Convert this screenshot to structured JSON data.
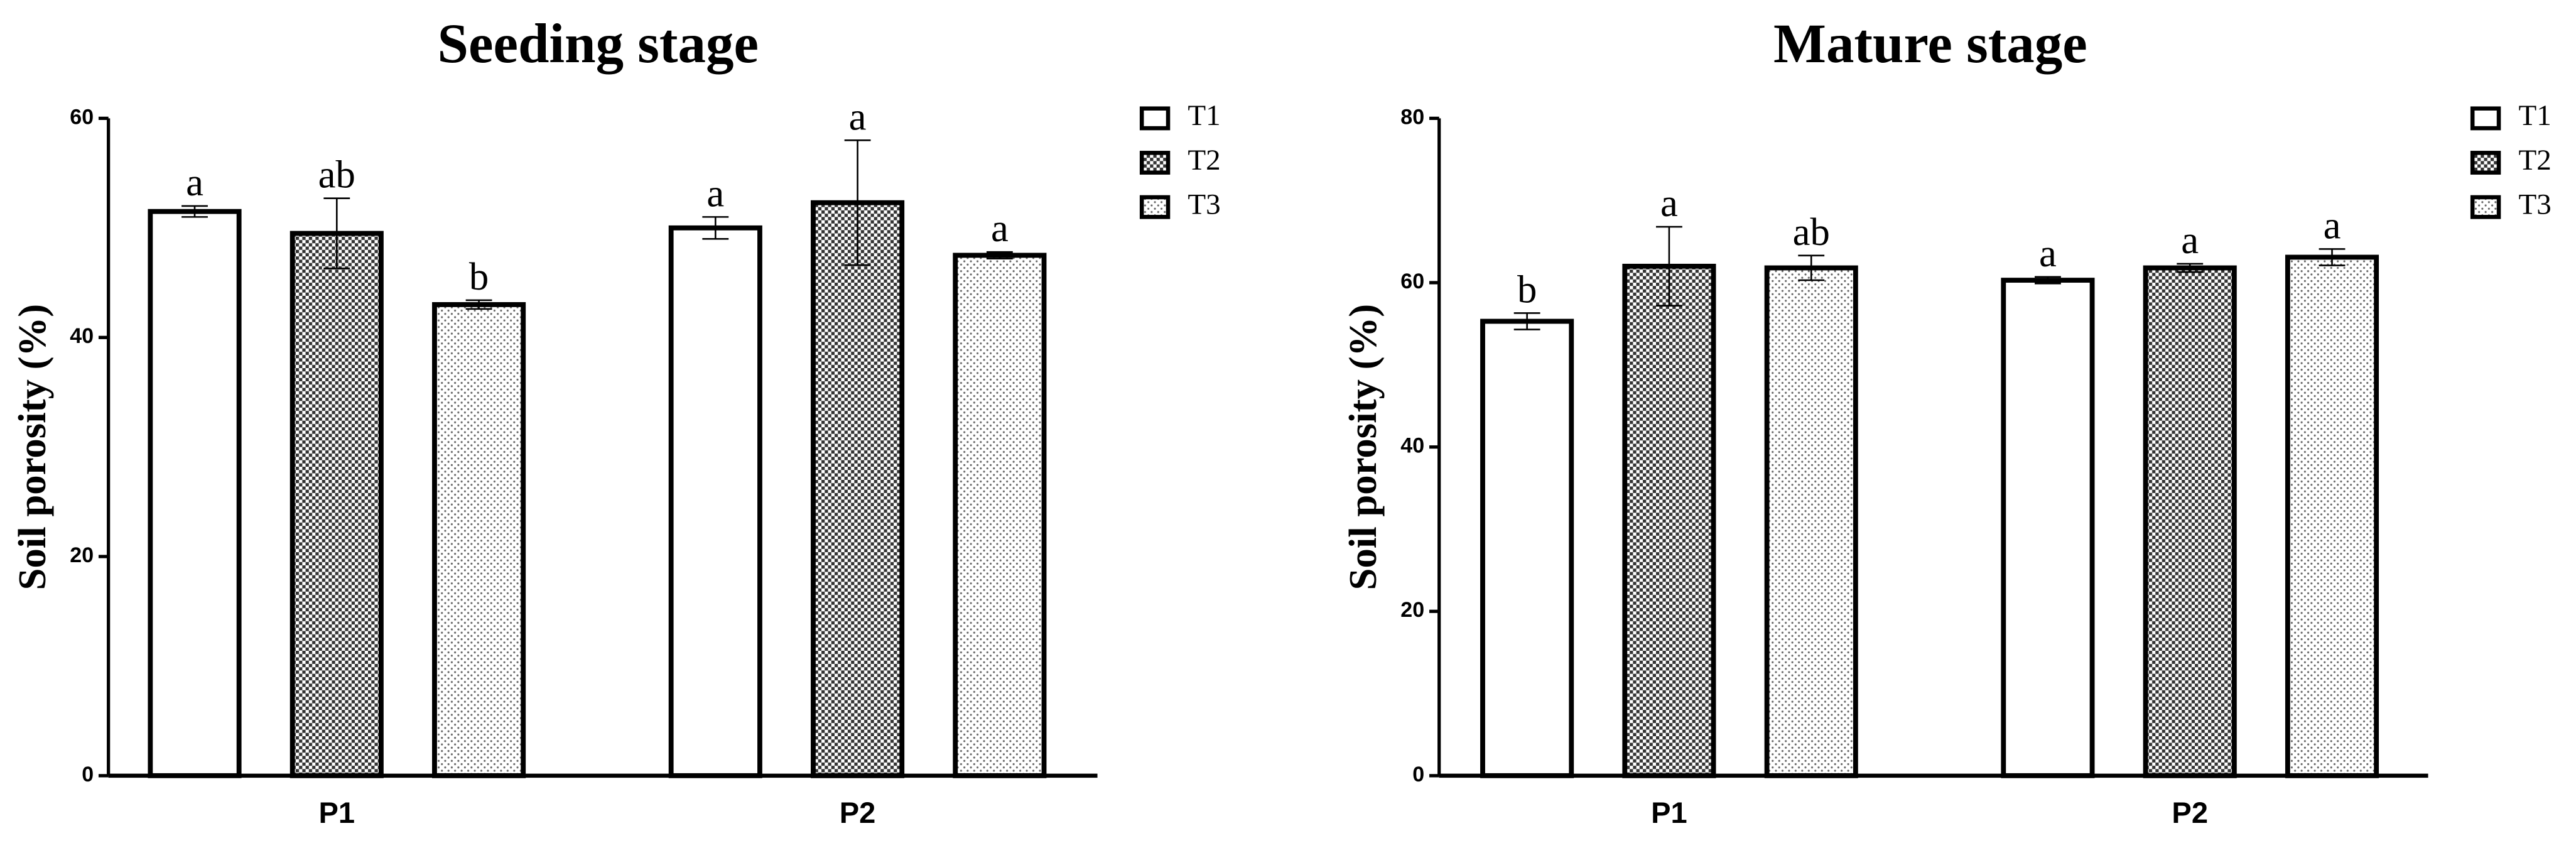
{
  "chart_data": [
    {
      "type": "bar",
      "title": "Seeding stage",
      "ylabel": "Soil porosity (%)",
      "categories": [
        "P1",
        "P2"
      ],
      "series": [
        {
          "name": "T1",
          "color": "#ffffff",
          "pattern": "none",
          "values": [
            51.5,
            50.0
          ],
          "errors": [
            0.5,
            1.0
          ],
          "letters": [
            "a",
            "a"
          ]
        },
        {
          "name": "T2",
          "color": "#555555",
          "pattern": "crosshatch",
          "values": [
            49.5,
            52.3
          ],
          "errors": [
            3.2,
            5.7
          ],
          "letters": [
            "ab",
            "a"
          ]
        },
        {
          "name": "T3",
          "color": "#f2f2f2",
          "pattern": "dots",
          "values": [
            43.0,
            47.5
          ],
          "errors": [
            0.4,
            0.3
          ],
          "letters": [
            "b",
            "a"
          ]
        }
      ],
      "ylim": [
        0,
        60
      ],
      "yticks": [
        0,
        20,
        40,
        60
      ]
    },
    {
      "type": "bar",
      "title": "Mature stage",
      "ylabel": "Soil porosity (%)",
      "categories": [
        "P1",
        "P2"
      ],
      "series": [
        {
          "name": "T1",
          "color": "#ffffff",
          "pattern": "none",
          "values": [
            55.3,
            60.3
          ],
          "errors": [
            1.0,
            0.4
          ],
          "letters": [
            "b",
            "a"
          ]
        },
        {
          "name": "T2",
          "color": "#555555",
          "pattern": "crosshatch",
          "values": [
            62.0,
            61.8
          ],
          "errors": [
            4.8,
            0.5
          ],
          "letters": [
            "a",
            "a"
          ]
        },
        {
          "name": "T3",
          "color": "#f2f2f2",
          "pattern": "dots",
          "values": [
            61.8,
            63.1
          ],
          "errors": [
            1.5,
            1.0
          ],
          "letters": [
            "ab",
            "a"
          ]
        }
      ],
      "ylim": [
        0,
        80
      ],
      "yticks": [
        0,
        20,
        40,
        60,
        80
      ]
    }
  ]
}
